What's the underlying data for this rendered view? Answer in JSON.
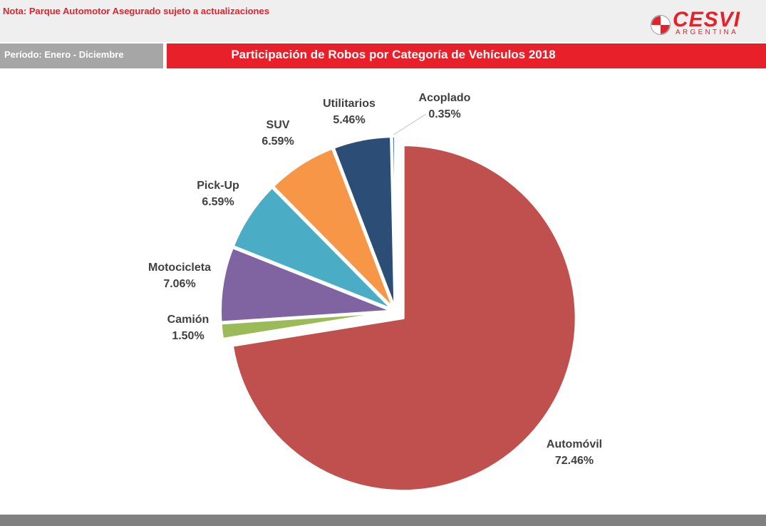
{
  "header": {
    "note": "Nota: Parque Automotor Asegurado sujeto a actualizaciones",
    "logo_text": "CESVI",
    "logo_subtext": "ARGENTINA",
    "period": "Período: Enero - Diciembre",
    "title": "Participación  de Robos por Categoría de Vehículos 2018"
  },
  "colors": {
    "brand_red": "#e8202a",
    "period_gray": "#a6a6a6",
    "footer_gray": "#808080"
  },
  "chart_data": {
    "type": "pie",
    "title": "Participación  de Robos por Categoría de Vehículos 2018",
    "slices": [
      {
        "label": "Automóvil",
        "value": 72.46,
        "display": "72.46%",
        "color": "#c0504d"
      },
      {
        "label": "Camión",
        "value": 1.5,
        "display": "1.50%",
        "color": "#9bbb59"
      },
      {
        "label": "Motocicleta",
        "value": 7.06,
        "display": "7.06%",
        "color": "#8064a2"
      },
      {
        "label": "Pick-Up",
        "value": 6.59,
        "display": "6.59%",
        "color": "#4bacc6"
      },
      {
        "label": "SUV",
        "value": 6.59,
        "display": "6.59%",
        "color": "#f79646"
      },
      {
        "label": "Utilitarios",
        "value": 5.46,
        "display": "5.46%",
        "color": "#2c4d75"
      },
      {
        "label": "Acoplado",
        "value": 0.35,
        "display": "0.35%",
        "color": "#4f81bd"
      }
    ]
  }
}
